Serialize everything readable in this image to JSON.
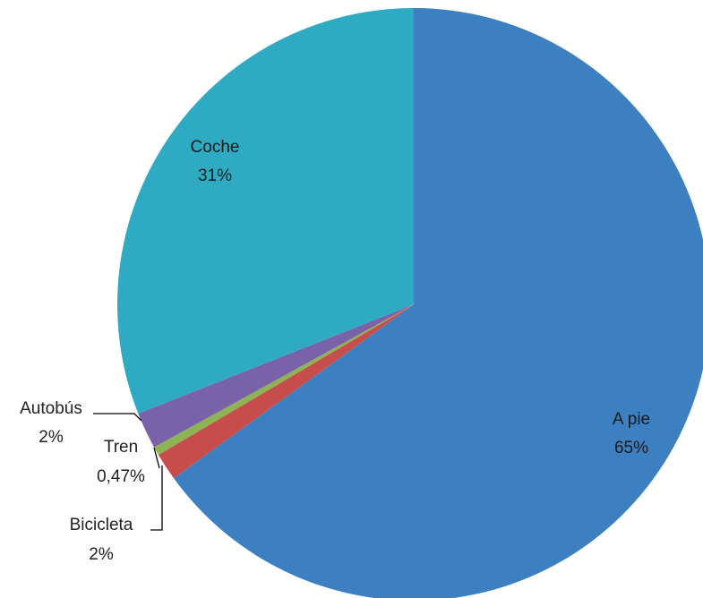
{
  "chart_data": {
    "type": "pie",
    "slices": [
      {
        "label": "A pie",
        "value": 65,
        "value_label": "65%",
        "color": "#3d80c1"
      },
      {
        "label": "Bicicleta",
        "value": 1.5,
        "value_label": "2%",
        "color": "#c74d4d"
      },
      {
        "label": "Tren",
        "value": 0.47,
        "value_label": "0,47%",
        "color": "#8db353"
      },
      {
        "label": "Autobús",
        "value": 2,
        "value_label": "2%",
        "color": "#7a62a8"
      },
      {
        "label": "Coche",
        "value": 31,
        "value_label": "31%",
        "color": "#2eabc3"
      }
    ],
    "start_angle_deg": 0,
    "direction": "clockwise",
    "legend": "none",
    "data_labels": "category-and-percent"
  }
}
